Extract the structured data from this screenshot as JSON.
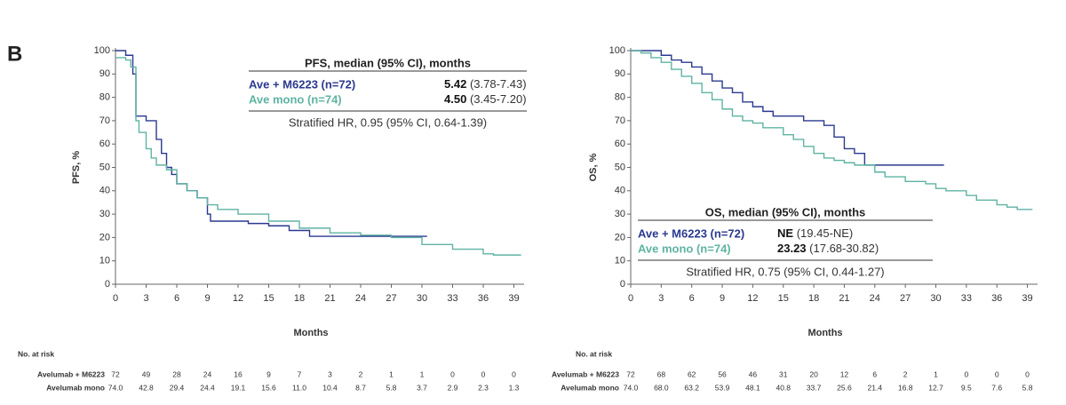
{
  "panel_label": "B",
  "chart_data": [
    {
      "type": "line",
      "step": true,
      "xlabel": "Months",
      "ylabel": "PFS, %",
      "xlim": [
        0,
        40
      ],
      "ylim": [
        0,
        100
      ],
      "xticks": [
        0,
        3,
        6,
        9,
        12,
        15,
        18,
        21,
        24,
        27,
        30,
        33,
        36,
        39
      ],
      "yticks": [
        0,
        10,
        20,
        30,
        40,
        50,
        60,
        70,
        80,
        90,
        100
      ],
      "legend_title": "PFS, median (95% CI), months",
      "hr": "Stratified HR, 0.95 (95% CI, 0.64-1.39)",
      "series": [
        {
          "name": "Ave + M6223 (n=72)",
          "color": "#2b3990",
          "median": "5.42",
          "ci": "(3.78-7.43)",
          "x": [
            0,
            1,
            1.7,
            2,
            3,
            4,
            4.5,
            5,
            5.5,
            6,
            7,
            8,
            9,
            9.3,
            12,
            13,
            15,
            17,
            19,
            30.5
          ],
          "values": [
            100,
            98,
            90,
            72,
            70,
            62,
            56,
            50,
            47,
            43,
            40,
            37,
            30,
            27,
            27,
            26,
            25,
            23,
            20.5,
            20.5
          ]
        },
        {
          "name": "Ave mono (n=74)",
          "color": "#5fb3a3",
          "median": "4.50",
          "ci": "(3.45-7.20)",
          "x": [
            0,
            1,
            1.5,
            2,
            2.3,
            3,
            3.5,
            4,
            5,
            6,
            7,
            8,
            9,
            10,
            12,
            15,
            18,
            21,
            24,
            27,
            30,
            33,
            36,
            37,
            39.7
          ],
          "values": [
            97,
            96,
            93,
            70,
            65,
            58,
            54,
            51,
            49,
            43,
            40,
            37,
            34,
            32,
            30,
            27,
            24,
            22,
            21,
            20,
            17,
            15,
            13,
            12.5,
            12.5
          ]
        }
      ],
      "risk_table": {
        "title": "No. at risk",
        "rows": [
          {
            "label": "Avelumab + M6223",
            "values": [
              "72",
              "49",
              "28",
              "24",
              "16",
              "9",
              "7",
              "3",
              "2",
              "1",
              "1",
              "0",
              "0",
              "0"
            ]
          },
          {
            "label": "Avelumab mono",
            "values": [
              "74.0",
              "42.8",
              "29.4",
              "24.4",
              "19.1",
              "15.6",
              "11.0",
              "10.4",
              "8.7",
              "5.8",
              "3.7",
              "2.9",
              "2.3",
              "1.3"
            ]
          }
        ]
      }
    },
    {
      "type": "line",
      "step": true,
      "xlabel": "Months",
      "ylabel": "OS, %",
      "xlim": [
        0,
        40
      ],
      "ylim": [
        0,
        100
      ],
      "xticks": [
        0,
        3,
        6,
        9,
        12,
        15,
        18,
        21,
        24,
        27,
        30,
        33,
        36,
        39
      ],
      "yticks": [
        0,
        10,
        20,
        30,
        40,
        50,
        60,
        70,
        80,
        90,
        100
      ],
      "legend_title": "OS, median (95% CI), months",
      "hr": "Stratified HR, 0.75 (95% CI, 0.44-1.27)",
      "series": [
        {
          "name": "Ave + M6223 (n=72)",
          "color": "#2b3990",
          "median": "NE",
          "ci": "(19.45-NE)",
          "x": [
            0,
            2,
            3,
            4,
            5,
            6,
            7,
            8,
            9,
            10,
            11,
            12,
            13,
            14,
            17,
            19,
            20,
            21,
            22,
            23,
            30.8
          ],
          "values": [
            100,
            100,
            98,
            96,
            95,
            93,
            90,
            87,
            84,
            82,
            78,
            76,
            74,
            72,
            70,
            68,
            63,
            58,
            56,
            51,
            51
          ]
        },
        {
          "name": "Ave mono (n=74)",
          "color": "#5fb3a3",
          "median": "23.23",
          "ci": "(17.68-30.82)",
          "x": [
            0,
            1,
            2,
            3,
            4,
            5,
            6,
            7,
            8,
            9,
            10,
            11,
            12,
            13,
            15,
            16,
            17,
            18,
            19,
            20,
            21,
            22,
            24,
            25,
            27,
            29,
            30,
            31,
            33,
            34,
            36,
            37,
            38,
            39.5
          ],
          "values": [
            100,
            99,
            97,
            95,
            92,
            89,
            86,
            82,
            79,
            75,
            72,
            70,
            69,
            67,
            64,
            62,
            59,
            56,
            54,
            53,
            52,
            51,
            48,
            46,
            44,
            43,
            41,
            40,
            38,
            36,
            34,
            33,
            32,
            32
          ]
        }
      ],
      "risk_table": {
        "title": "No. at risk",
        "rows": [
          {
            "label": "Avelumab + M6223",
            "values": [
              "72",
              "68",
              "62",
              "56",
              "46",
              "31",
              "20",
              "12",
              "6",
              "2",
              "1",
              "0",
              "0",
              "0"
            ]
          },
          {
            "label": "Avelumab mono",
            "values": [
              "74.0",
              "68.0",
              "63.2",
              "53.9",
              "48.1",
              "40.8",
              "33.7",
              "25.6",
              "21.4",
              "16.8",
              "12.7",
              "9.5",
              "7.6",
              "5.8"
            ]
          }
        ]
      }
    }
  ]
}
